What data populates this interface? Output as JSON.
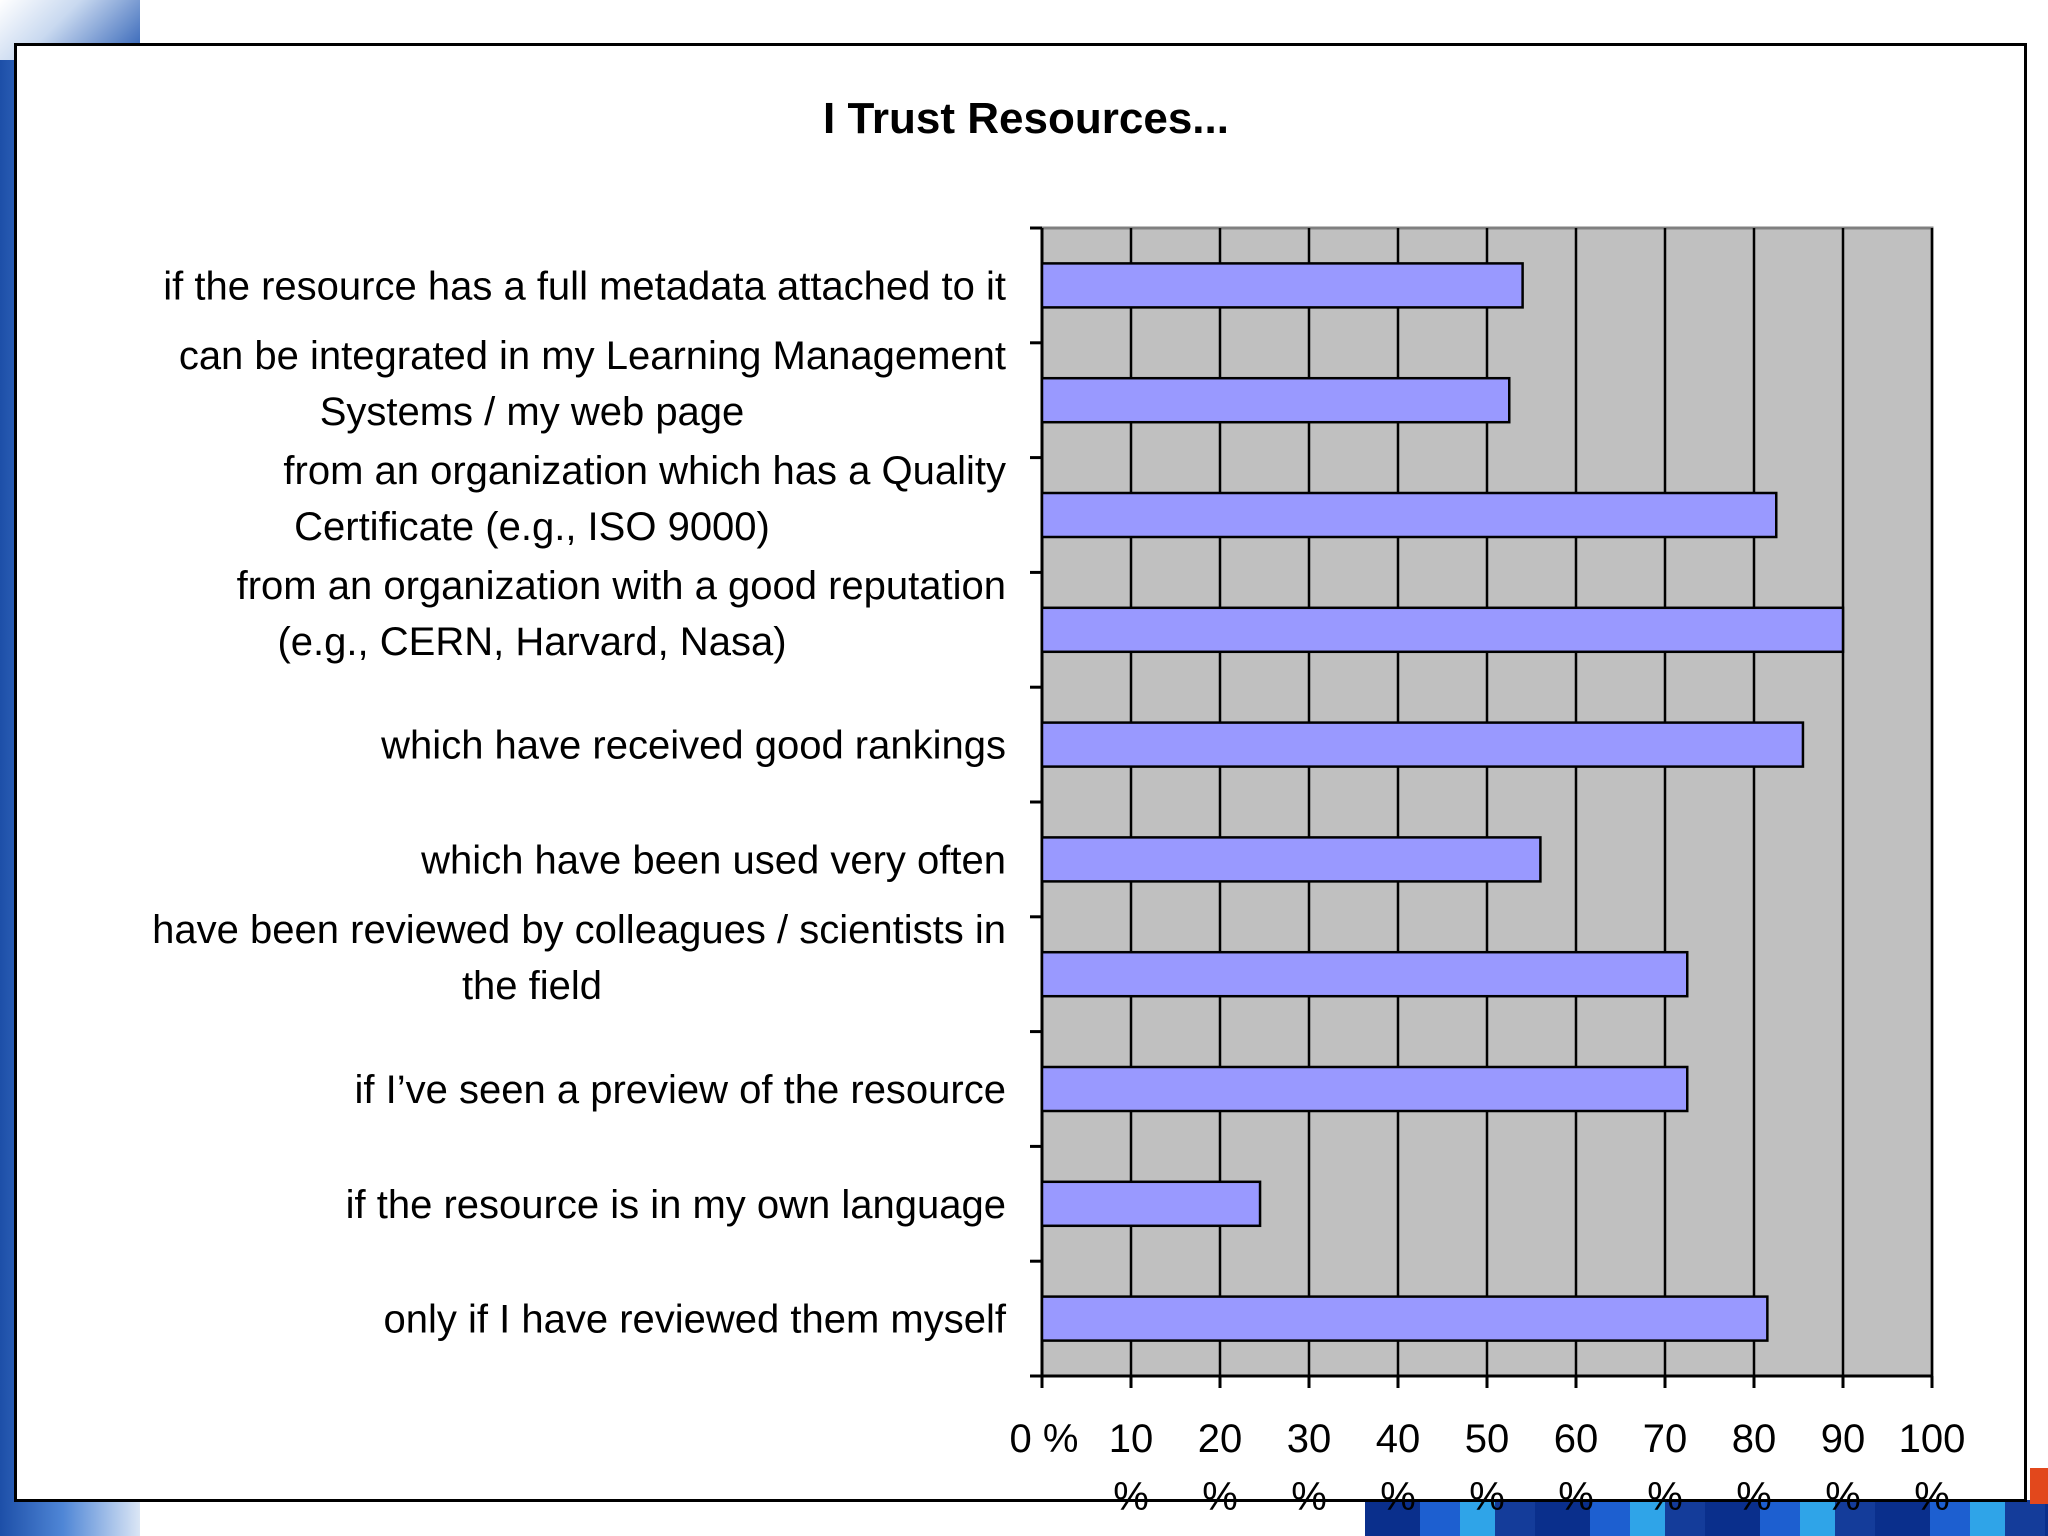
{
  "chart_data": {
    "type": "bar",
    "orientation": "horizontal",
    "title": "I Trust Resources...",
    "xlabel": "",
    "ylabel": "",
    "xlim": [
      0,
      100
    ],
    "grid": true,
    "legend": "none",
    "tick_labels": [
      {
        "num": "0 %",
        "unit": ""
      },
      {
        "num": "10",
        "unit": "%"
      },
      {
        "num": "20",
        "unit": "%"
      },
      {
        "num": "30",
        "unit": "%"
      },
      {
        "num": "40",
        "unit": "%"
      },
      {
        "num": "50",
        "unit": "%"
      },
      {
        "num": "60",
        "unit": "%"
      },
      {
        "num": "70",
        "unit": "%"
      },
      {
        "num": "80",
        "unit": "%"
      },
      {
        "num": "90",
        "unit": "%"
      },
      {
        "num": "100",
        "unit": "%"
      }
    ],
    "categories": [
      [
        "if the resource has a full metadata attached to it"
      ],
      [
        "can be integrated in my Learning Management",
        "Systems / my web page"
      ],
      [
        "from an organization which has a Quality",
        "Certificate (e.g., ISO 9000)"
      ],
      [
        "from an organization with a good reputation",
        "(e.g., CERN, Harvard, Nasa)"
      ],
      [
        "which have received good rankings"
      ],
      [
        "which have been used very often"
      ],
      [
        "have been reviewed by colleagues / scientists in",
        "the field"
      ],
      [
        "if I’ve seen a preview of the resource"
      ],
      [
        "if the resource is in my own language"
      ],
      [
        "only if I have reviewed them myself"
      ]
    ],
    "values": [
      54,
      52.5,
      82.5,
      90,
      85.5,
      56,
      72.5,
      72.5,
      24.5,
      81.5
    ],
    "colors": {
      "bar": "#9999ff",
      "plot_background": "#c0c0c0",
      "gridline": "#000000"
    }
  }
}
